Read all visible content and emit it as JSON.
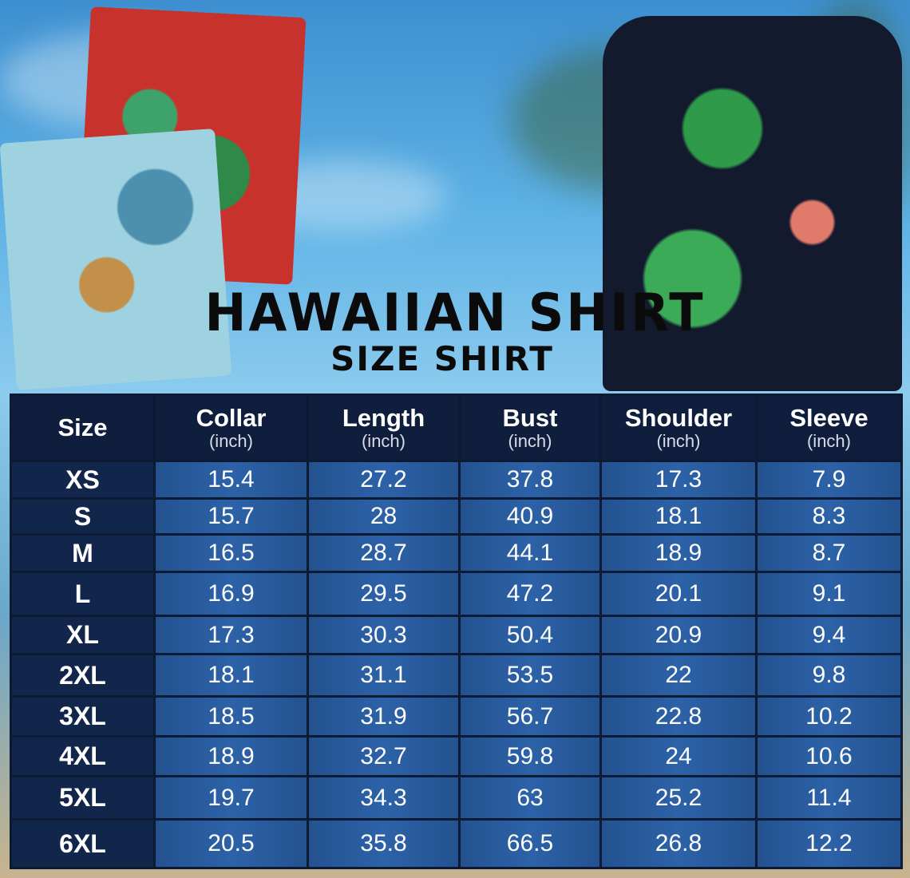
{
  "title": "HAWAIIAN SHIRT",
  "subtitle": "SIZE SHIRT",
  "colors": {
    "header_bg": "#0f1e3c",
    "cell_bg": "#2d62a8",
    "size_col_bg": "#11264a",
    "title": "#0b0b0b"
  },
  "table": {
    "headers": [
      {
        "label": "Size",
        "unit": ""
      },
      {
        "label": "Collar",
        "unit": "(inch)"
      },
      {
        "label": "Length",
        "unit": "(inch)"
      },
      {
        "label": "Bust",
        "unit": "(inch)"
      },
      {
        "label": "Shoulder",
        "unit": "(inch)"
      },
      {
        "label": "Sleeve",
        "unit": "(inch)"
      }
    ],
    "rows": [
      [
        "XS",
        "15.4",
        "27.2",
        "37.8",
        "17.3",
        "7.9"
      ],
      [
        "S",
        "15.7",
        "28",
        "40.9",
        "18.1",
        "8.3"
      ],
      [
        "M",
        "16.5",
        "28.7",
        "44.1",
        "18.9",
        "8.7"
      ],
      [
        "L",
        "16.9",
        "29.5",
        "47.2",
        "20.1",
        "9.1"
      ],
      [
        "XL",
        "17.3",
        "30.3",
        "50.4",
        "20.9",
        "9.4"
      ],
      [
        "2XL",
        "18.1",
        "31.1",
        "53.5",
        "22",
        "9.8"
      ],
      [
        "3XL",
        "18.5",
        "31.9",
        "56.7",
        "22.8",
        "10.2"
      ],
      [
        "4XL",
        "18.9",
        "32.7",
        "59.8",
        "24",
        "10.6"
      ],
      [
        "5XL",
        "19.7",
        "34.3",
        "63",
        "25.2",
        "11.4"
      ],
      [
        "6XL",
        "20.5",
        "35.8",
        "66.5",
        "26.8",
        "12.2"
      ]
    ]
  }
}
